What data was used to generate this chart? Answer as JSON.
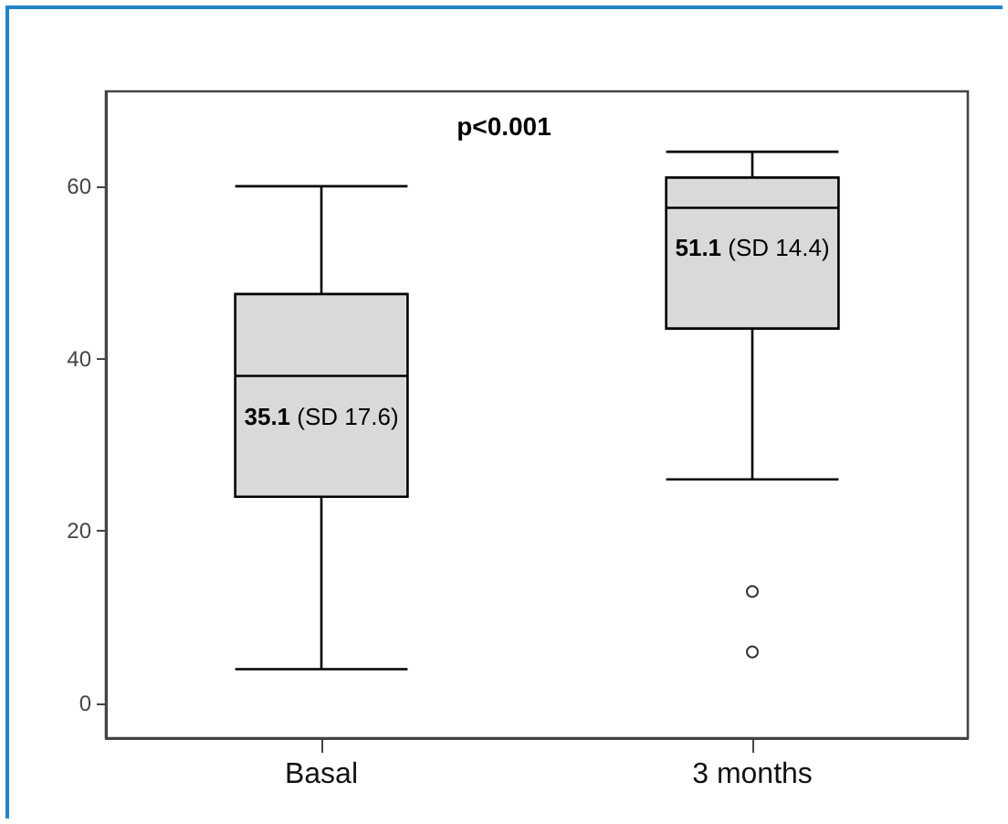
{
  "chart_data": {
    "type": "box",
    "categories": [
      "Basal",
      "3 months"
    ],
    "boxes": [
      {
        "low": 4,
        "q1": 24,
        "median": 38,
        "q3": 47.5,
        "high": 60
      },
      {
        "low": 26,
        "q1": 43.5,
        "median": 57.5,
        "q3": 61,
        "high": 64,
        "outliers": [
          13,
          6
        ]
      }
    ],
    "color": "#d9d9d9",
    "ylim": [
      -4,
      71
    ],
    "yticks": [
      0,
      20,
      40,
      60
    ],
    "grid": false,
    "annotations": [
      "p<0.001",
      "35.1 (SD 17.6)",
      "51.1 (SD 14.4)"
    ]
  }
}
